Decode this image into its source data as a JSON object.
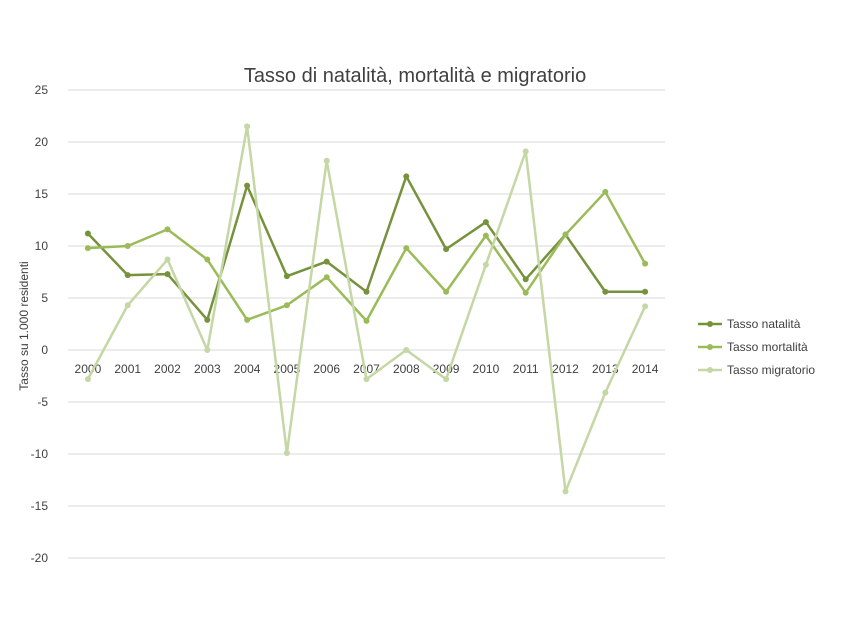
{
  "chart_data": {
    "type": "line",
    "title": "Tasso di natalità, mortalità e migratorio",
    "xlabel": "",
    "ylabel": "Tasso su 1.000 residenti",
    "ylim": [
      -20,
      25
    ],
    "yticks": [
      25,
      20,
      15,
      10,
      5,
      0,
      -5,
      -10,
      -15,
      -20
    ],
    "categories": [
      "2000",
      "2001",
      "2002",
      "2003",
      "2004",
      "2005",
      "2006",
      "2007",
      "2008",
      "2009",
      "2010",
      "2011",
      "2012",
      "2013",
      "2014"
    ],
    "grid": true,
    "legend_position": "right",
    "series": [
      {
        "name": "Tasso natalità",
        "color": "#76923c",
        "values": [
          11.2,
          7.2,
          7.3,
          2.9,
          15.8,
          7.1,
          8.5,
          5.6,
          16.7,
          9.7,
          12.3,
          6.8,
          11.1,
          5.6,
          5.6
        ]
      },
      {
        "name": "Tasso mortalità",
        "color": "#9bbb59",
        "values": [
          9.8,
          10.0,
          11.6,
          8.7,
          2.9,
          4.3,
          7.0,
          2.8,
          9.8,
          5.6,
          11.0,
          5.5,
          11.1,
          15.2,
          8.3
        ]
      },
      {
        "name": "Tasso migratorio",
        "color": "#c4d7a4",
        "values": [
          -2.8,
          4.3,
          8.7,
          0.0,
          21.5,
          -9.9,
          18.2,
          -2.8,
          0.0,
          -2.8,
          8.2,
          19.1,
          -13.6,
          -4.1,
          4.2
        ]
      }
    ]
  }
}
